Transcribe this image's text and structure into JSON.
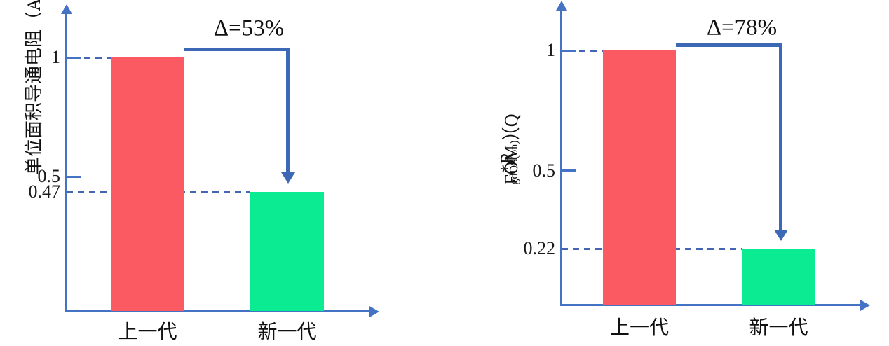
{
  "figure": {
    "background": "#ffffff",
    "axis_color": "#4472c4",
    "arrow_color": "#3d68b5",
    "bar_color_previous": "#fb5a62",
    "bar_color_new": "#0aeb92"
  },
  "chart_data": [
    {
      "type": "bar",
      "title": "",
      "xlabel": "",
      "ylabel": "单位面积导通电阻（A.U.）",
      "ylabel_parts": [
        {
          "text": "单位面积导通电阻（A.U.）",
          "sub": false
        }
      ],
      "categories": [
        "上一代",
        "新一代"
      ],
      "values": [
        1,
        0.47
      ],
      "bar_colors": [
        "#fb5a62",
        "#0aeb92"
      ],
      "ylim": [
        0,
        1.2
      ],
      "grid": false,
      "legend": null,
      "yticks": [
        {
          "label": "1",
          "value": 1,
          "style": "dash",
          "dash_to_bar": 0
        },
        {
          "label": "0.5",
          "value": 0.5,
          "style": "tick"
        },
        {
          "label": "0.47",
          "value": 0.47,
          "style": "dash",
          "dash_to_bar": 1
        }
      ],
      "annotation": "Δ=53%"
    },
    {
      "type": "bar",
      "title": "",
      "xlabel": "",
      "ylabel": "FOM（Qgd*RDS(on)）",
      "ylabel_parts": [
        {
          "text": "FOM（Q",
          "sub": false
        },
        {
          "text": "gd",
          "sub": true
        },
        {
          "text": "*R",
          "sub": false
        },
        {
          "text": "DS(on)",
          "sub": true
        },
        {
          "text": "）",
          "sub": false
        }
      ],
      "categories": [
        "上一代",
        "新一代"
      ],
      "values": [
        1,
        0.22
      ],
      "bar_colors": [
        "#fb5a62",
        "#0aeb92"
      ],
      "ylim": [
        0,
        1.2
      ],
      "grid": false,
      "legend": null,
      "yticks": [
        {
          "label": "1",
          "value": 1,
          "style": "dash",
          "dash_to_bar": 0
        },
        {
          "label": "0.5",
          "value": 0.5,
          "style": "tick"
        },
        {
          "label": "0.22",
          "value": 0.22,
          "style": "dash",
          "dash_to_bar": 1
        }
      ],
      "annotation": "Δ=78%"
    }
  ]
}
